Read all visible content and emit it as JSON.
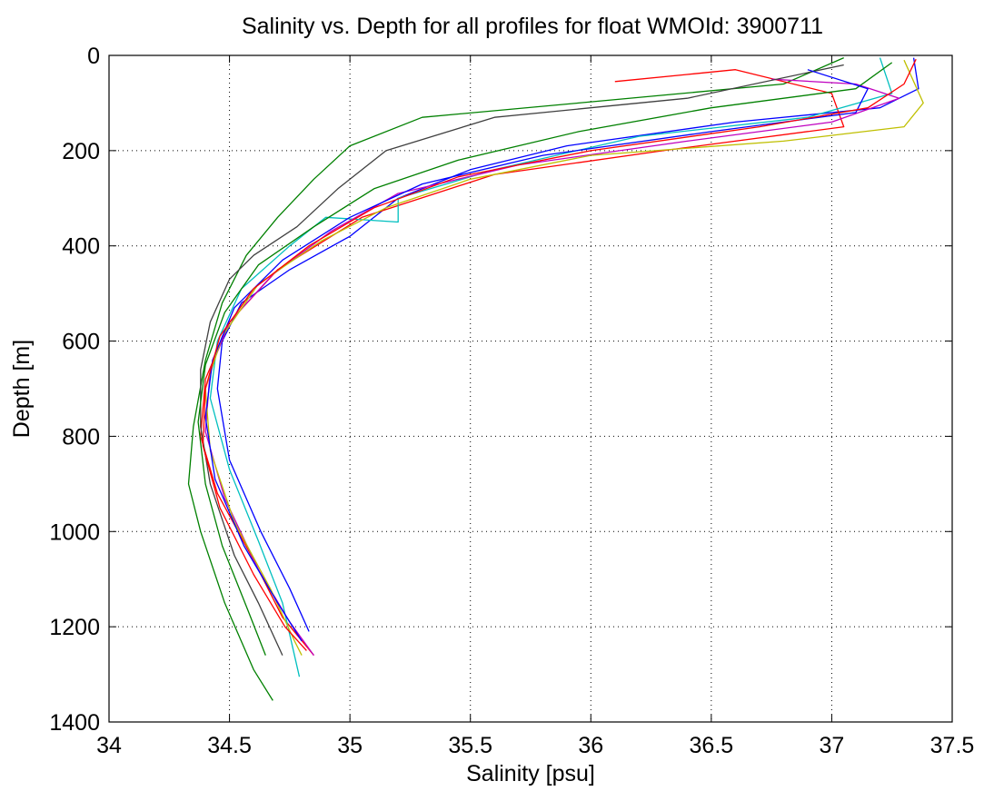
{
  "chart_data": {
    "type": "line",
    "title": "Salinity vs. Depth for all profiles for float WMOId: 3900711",
    "xlabel": "Salinity [psu]",
    "ylabel": "Depth [m]",
    "xlim": [
      34,
      37.5
    ],
    "ylim": [
      0,
      1400
    ],
    "y_reversed": true,
    "grid": true,
    "legend": "none",
    "x_ticks": [
      "34",
      "34.5",
      "35",
      "35.5",
      "36",
      "36.5",
      "37",
      "37.5"
    ],
    "y_ticks": [
      "0",
      "200",
      "400",
      "600",
      "800",
      "1000",
      "1200",
      "1400"
    ],
    "series_colors": [
      "#0000ff",
      "#008000",
      "#ff0000",
      "#00bfbf",
      "#bf00bf",
      "#bfbf00",
      "#3f3f3f"
    ],
    "series": [
      {
        "color": "#0000ff",
        "points": [
          [
            37.34,
            5
          ],
          [
            37.36,
            70
          ],
          [
            37.2,
            110
          ],
          [
            36.6,
            140
          ],
          [
            35.9,
            190
          ],
          [
            35.5,
            240
          ],
          [
            35.2,
            300
          ],
          [
            35.0,
            380
          ],
          [
            34.75,
            450
          ],
          [
            34.55,
            520
          ],
          [
            34.47,
            600
          ],
          [
            34.45,
            700
          ],
          [
            34.5,
            850
          ],
          [
            34.63,
            1000
          ],
          [
            34.75,
            1120
          ],
          [
            34.83,
            1210
          ]
        ]
      },
      {
        "color": "#008000",
        "points": [
          [
            37.05,
            5
          ],
          [
            36.8,
            60
          ],
          [
            35.95,
            100
          ],
          [
            35.3,
            130
          ],
          [
            35.0,
            190
          ],
          [
            34.85,
            260
          ],
          [
            34.7,
            340
          ],
          [
            34.57,
            420
          ],
          [
            34.47,
            520
          ],
          [
            34.4,
            640
          ],
          [
            34.35,
            780
          ],
          [
            34.33,
            900
          ],
          [
            34.38,
            1000
          ],
          [
            34.48,
            1150
          ],
          [
            34.6,
            1290
          ],
          [
            34.68,
            1355
          ]
        ]
      },
      {
        "color": "#ff0000",
        "points": [
          [
            36.1,
            55
          ],
          [
            36.4,
            40
          ],
          [
            36.6,
            30
          ],
          [
            37.0,
            80
          ],
          [
            37.05,
            150
          ],
          [
            36.3,
            200
          ],
          [
            35.6,
            250
          ],
          [
            35.05,
            340
          ],
          [
            34.7,
            450
          ],
          [
            34.5,
            560
          ],
          [
            34.4,
            680
          ],
          [
            34.38,
            800
          ],
          [
            34.45,
            920
          ],
          [
            34.6,
            1060
          ],
          [
            34.72,
            1180
          ],
          [
            34.85,
            1260
          ]
        ]
      },
      {
        "color": "#00bfbf",
        "points": [
          [
            37.2,
            5
          ],
          [
            37.25,
            80
          ],
          [
            36.9,
            130
          ],
          [
            36.2,
            170
          ],
          [
            35.6,
            240
          ],
          [
            35.2,
            300
          ],
          [
            35.2,
            350
          ],
          [
            34.9,
            340
          ],
          [
            34.75,
            400
          ],
          [
            34.55,
            490
          ],
          [
            34.45,
            600
          ],
          [
            34.42,
            720
          ],
          [
            34.5,
            870
          ],
          [
            34.62,
            1020
          ],
          [
            34.72,
            1150
          ],
          [
            34.79,
            1305
          ]
        ]
      },
      {
        "color": "#bf00bf",
        "points": [
          [
            36.75,
            50
          ],
          [
            37.1,
            60
          ],
          [
            37.28,
            90
          ],
          [
            37.0,
            140
          ],
          [
            36.4,
            180
          ],
          [
            35.7,
            230
          ],
          [
            35.2,
            290
          ],
          [
            34.92,
            370
          ],
          [
            34.68,
            460
          ],
          [
            34.5,
            560
          ],
          [
            34.42,
            660
          ],
          [
            34.4,
            790
          ],
          [
            34.48,
            930
          ],
          [
            34.62,
            1080
          ],
          [
            34.75,
            1190
          ],
          [
            34.85,
            1260
          ]
        ]
      },
      {
        "color": "#bfbf00",
        "points": [
          [
            37.3,
            10
          ],
          [
            37.38,
            100
          ],
          [
            37.3,
            150
          ],
          [
            36.8,
            180
          ],
          [
            36.0,
            210
          ],
          [
            35.5,
            260
          ],
          [
            35.15,
            320
          ],
          [
            34.88,
            390
          ],
          [
            34.62,
            480
          ],
          [
            34.47,
            590
          ],
          [
            34.4,
            700
          ],
          [
            34.42,
            830
          ],
          [
            34.52,
            980
          ],
          [
            34.67,
            1120
          ],
          [
            34.77,
            1230
          ],
          [
            34.8,
            1260
          ]
        ]
      },
      {
        "color": "#3f3f3f",
        "points": [
          [
            37.05,
            20
          ],
          [
            36.4,
            90
          ],
          [
            35.6,
            130
          ],
          [
            35.15,
            200
          ],
          [
            34.95,
            280
          ],
          [
            34.78,
            360
          ],
          [
            34.6,
            420
          ],
          [
            34.5,
            470
          ],
          [
            34.42,
            560
          ],
          [
            34.38,
            660
          ],
          [
            34.38,
            780
          ],
          [
            34.42,
            900
          ],
          [
            34.52,
            1050
          ],
          [
            34.62,
            1150
          ],
          [
            34.72,
            1260
          ]
        ]
      },
      {
        "color": "#008000",
        "points": [
          [
            37.25,
            15
          ],
          [
            37.1,
            70
          ],
          [
            36.5,
            110
          ],
          [
            35.95,
            160
          ],
          [
            35.45,
            220
          ],
          [
            35.1,
            280
          ],
          [
            34.85,
            360
          ],
          [
            34.62,
            440
          ],
          [
            34.48,
            540
          ],
          [
            34.4,
            650
          ],
          [
            34.37,
            770
          ],
          [
            34.4,
            900
          ],
          [
            34.47,
            1030
          ],
          [
            34.58,
            1170
          ],
          [
            34.65,
            1260
          ]
        ]
      },
      {
        "color": "#0000ff",
        "points": [
          [
            36.9,
            30
          ],
          [
            37.15,
            70
          ],
          [
            37.1,
            120
          ],
          [
            36.5,
            160
          ],
          [
            35.8,
            210
          ],
          [
            35.3,
            270
          ],
          [
            35.0,
            340
          ],
          [
            34.72,
            430
          ],
          [
            34.52,
            530
          ],
          [
            34.43,
            640
          ],
          [
            34.4,
            760
          ],
          [
            34.44,
            890
          ],
          [
            34.56,
            1030
          ],
          [
            34.7,
            1150
          ],
          [
            34.8,
            1230
          ]
        ]
      },
      {
        "color": "#ff0000",
        "points": [
          [
            37.35,
            8
          ],
          [
            37.3,
            60
          ],
          [
            37.15,
            110
          ],
          [
            36.7,
            150
          ],
          [
            36.0,
            200
          ],
          [
            35.45,
            255
          ],
          [
            35.1,
            320
          ],
          [
            34.83,
            400
          ],
          [
            34.6,
            490
          ],
          [
            34.46,
            590
          ],
          [
            34.4,
            700
          ],
          [
            34.39,
            820
          ],
          [
            34.46,
            950
          ],
          [
            34.6,
            1090
          ],
          [
            34.73,
            1200
          ],
          [
            34.82,
            1250
          ]
        ]
      }
    ]
  }
}
